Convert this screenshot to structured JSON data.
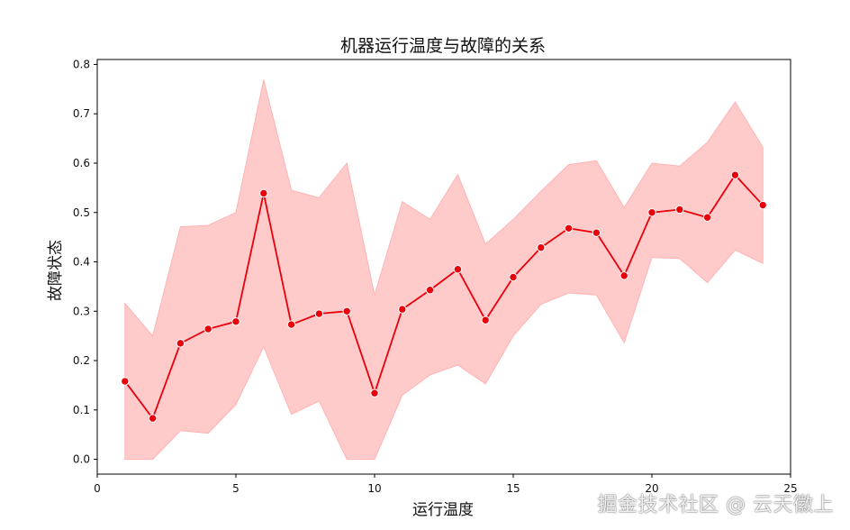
{
  "chart_data": {
    "type": "line",
    "title": "机器运行温度与故障的关系",
    "xlabel": "运行温度",
    "ylabel": "故障状态",
    "x": [
      1,
      2,
      3,
      4,
      5,
      6,
      7,
      8,
      9,
      10,
      11,
      12,
      13,
      14,
      15,
      16,
      17,
      18,
      19,
      20,
      21,
      22,
      23,
      24
    ],
    "series": [
      {
        "values": [
          0.158,
          0.083,
          0.235,
          0.264,
          0.279,
          0.539,
          0.273,
          0.295,
          0.3,
          0.134,
          0.304,
          0.343,
          0.385,
          0.282,
          0.369,
          0.429,
          0.468,
          0.459,
          0.372,
          0.5,
          0.506,
          0.49,
          0.576,
          0.515
        ],
        "color": "#e8000b",
        "marker": "circle"
      }
    ],
    "band": {
      "lower": [
        0.0,
        0.0,
        0.058,
        0.053,
        0.111,
        0.228,
        0.091,
        0.118,
        0.0,
        0.0,
        0.13,
        0.171,
        0.191,
        0.153,
        0.25,
        0.314,
        0.337,
        0.333,
        0.236,
        0.409,
        0.407,
        0.358,
        0.424,
        0.397
      ],
      "upper": [
        0.316,
        0.25,
        0.471,
        0.474,
        0.5,
        0.769,
        0.545,
        0.53,
        0.6,
        0.333,
        0.522,
        0.486,
        0.577,
        0.436,
        0.486,
        0.543,
        0.597,
        0.605,
        0.51,
        0.6,
        0.594,
        0.642,
        0.724,
        0.632
      ],
      "color": "#ffb3b3"
    },
    "xlim": [
      0,
      25
    ],
    "ylim": [
      -0.03,
      0.81
    ],
    "xticks": [
      0,
      5,
      10,
      15,
      20,
      25
    ],
    "yticks": [
      0.0,
      0.1,
      0.2,
      0.3,
      0.4,
      0.5,
      0.6,
      0.7,
      0.8
    ],
    "grid": false,
    "legend": "none"
  },
  "watermark": "掘金技术社区 @ 云天徽上"
}
